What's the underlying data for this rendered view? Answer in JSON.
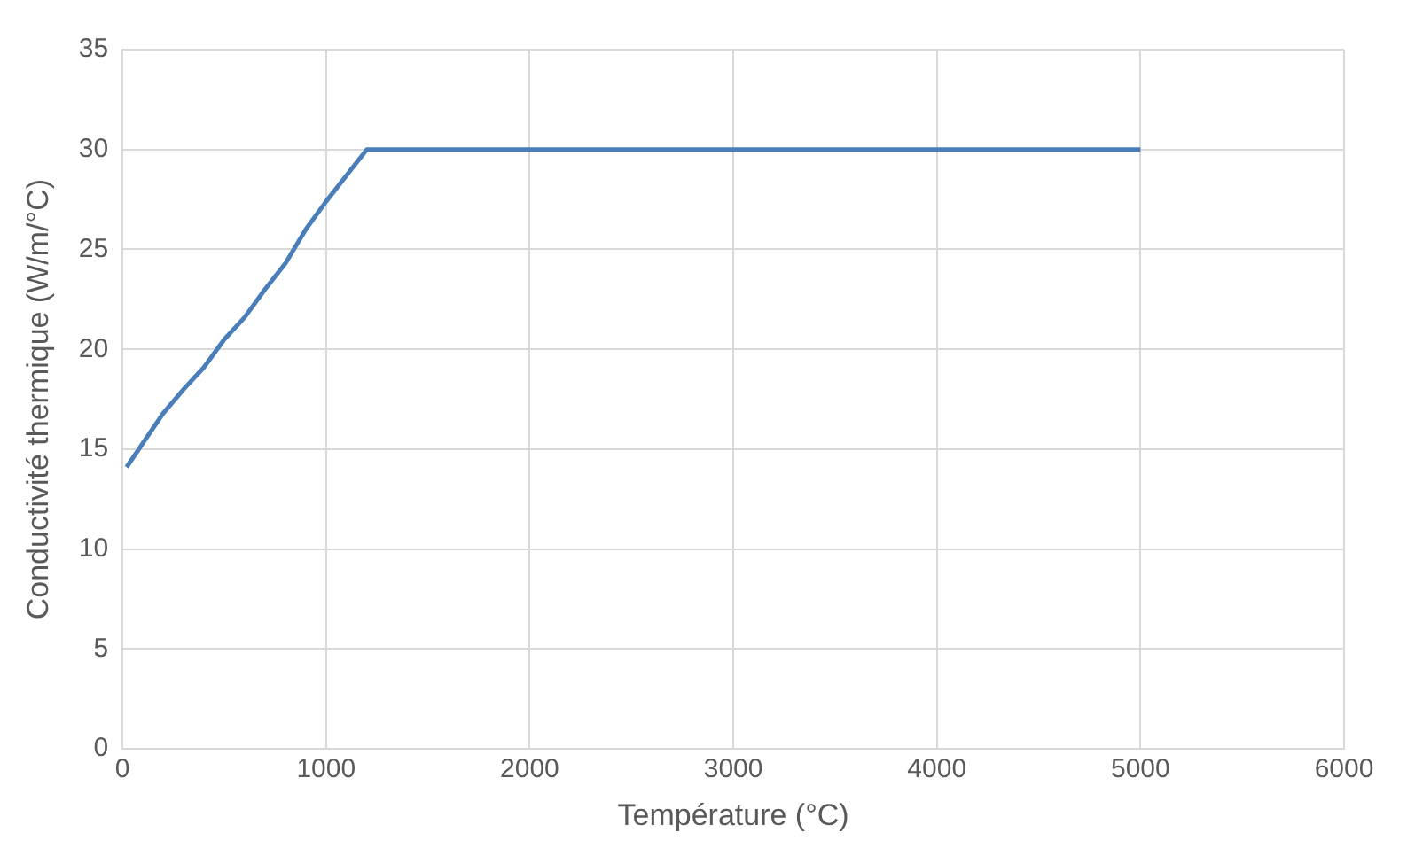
{
  "chart_data": {
    "type": "line",
    "xlabel": "Température (°C)",
    "ylabel": "Conductivité thermique (W/m/°C)",
    "x": [
      20,
      100,
      200,
      300,
      400,
      500,
      600,
      700,
      800,
      900,
      1000,
      1100,
      1200,
      5000
    ],
    "series": [
      {
        "color": "#4a7ebb",
        "values": [
          14.1,
          15.3,
          16.8,
          18,
          19.1,
          20.5,
          21.6,
          23,
          24.3,
          26,
          27.4,
          28.7,
          30,
          30
        ]
      }
    ],
    "xlim": [
      0,
      6000
    ],
    "xticks": [
      0,
      1000,
      2000,
      3000,
      4000,
      5000,
      6000
    ],
    "ylim": [
      0,
      35
    ],
    "yticks": [
      0,
      5,
      10,
      15,
      20,
      25,
      30,
      35
    ],
    "grid": true,
    "legend": false,
    "marker": "none",
    "line_style": "solid"
  }
}
